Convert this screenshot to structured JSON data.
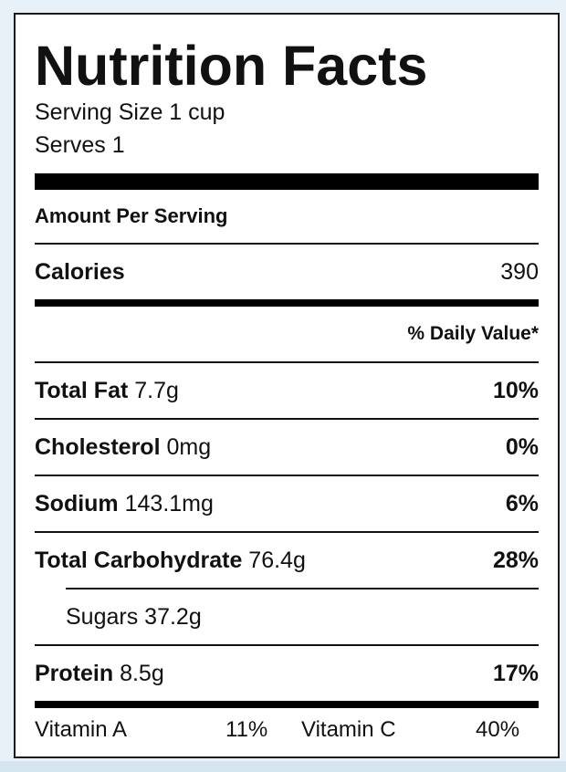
{
  "label": {
    "title": "Nutrition Facts",
    "serving_size": "Serving Size 1 cup",
    "serves": "Serves 1",
    "amount_per_serving": "Amount Per Serving",
    "calories": {
      "name": "Calories",
      "value": "390"
    },
    "daily_value_header": "% Daily Value*",
    "nutrients": {
      "total_fat": {
        "name": "Total Fat",
        "amount": "7.7g",
        "dv": "10%"
      },
      "cholesterol": {
        "name": "Cholesterol",
        "amount": "0mg",
        "dv": "0%"
      },
      "sodium": {
        "name": "Sodium",
        "amount": "143.1mg",
        "dv": "6%"
      },
      "total_carbohydrate": {
        "name": "Total Carbohydrate",
        "amount": "76.4g",
        "dv": "28%"
      },
      "sugars": {
        "name": "Sugars",
        "amount": "37.2g"
      },
      "protein": {
        "name": "Protein",
        "amount": "8.5g",
        "dv": "17%"
      }
    },
    "vitamins": {
      "vitamin_a": {
        "name": "Vitamin A",
        "value": "11%"
      },
      "vitamin_c": {
        "name": "Vitamin C",
        "value": "40%"
      }
    }
  }
}
